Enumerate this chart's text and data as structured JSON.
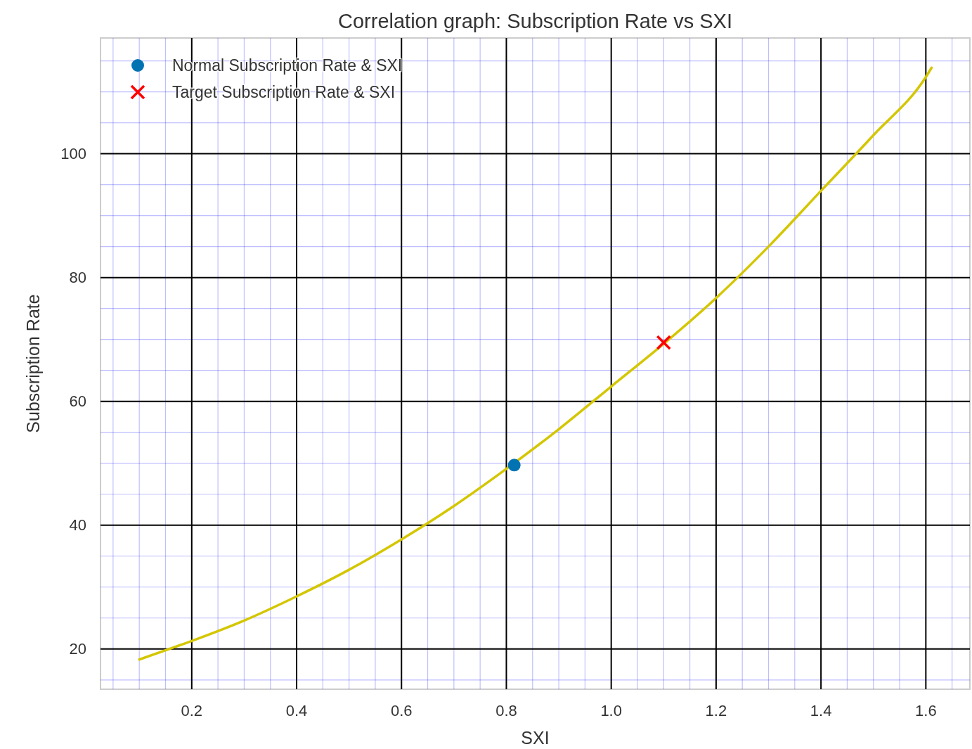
{
  "chart_data": {
    "type": "scatter",
    "title": "Correlation graph: Subscription Rate vs SXI",
    "xlabel": "SXI",
    "ylabel": "Subscription Rate",
    "xlim": [
      0.026,
      1.684
    ],
    "ylim": [
      13.5,
      118.7
    ],
    "xticks": [
      {
        "value": 0.05,
        "label": null
      },
      {
        "value": 0.1,
        "label": null
      },
      {
        "value": 0.15,
        "label": null
      },
      0.2,
      {
        "value": 0.25,
        "label": null
      },
      {
        "value": 0.3,
        "label": null
      },
      {
        "value": 0.35,
        "label": null
      },
      0.4,
      {
        "value": 0.45,
        "label": null
      },
      {
        "value": 0.5,
        "label": null
      },
      {
        "value": 0.55,
        "label": null
      },
      0.6,
      {
        "value": 0.65,
        "label": null
      },
      {
        "value": 0.7,
        "label": null
      },
      {
        "value": 0.75,
        "label": null
      },
      0.8,
      {
        "value": 0.85,
        "label": null
      },
      {
        "value": 0.9,
        "label": null
      },
      {
        "value": 0.95,
        "label": null
      },
      {
        "value": 1.0,
        "label": "1.0"
      },
      {
        "value": 1.05,
        "label": null
      },
      {
        "value": 1.1,
        "label": null
      },
      {
        "value": 1.15,
        "label": null
      },
      1.2,
      {
        "value": 1.25,
        "label": null
      },
      {
        "value": 1.3,
        "label": null
      },
      {
        "value": 1.35,
        "label": null
      },
      1.4,
      {
        "value": 1.45,
        "label": null
      },
      {
        "value": 1.5,
        "label": null
      },
      {
        "value": 1.55,
        "label": null
      },
      1.6,
      {
        "value": 1.65,
        "label": null
      }
    ],
    "yticks": [
      {
        "value": 15,
        "label": null
      },
      20,
      {
        "value": 25,
        "label": null
      },
      {
        "value": 30,
        "label": null
      },
      {
        "value": 35,
        "label": null
      },
      40,
      {
        "value": 45,
        "label": null
      },
      {
        "value": 50,
        "label": null
      },
      {
        "value": 55,
        "label": null
      },
      60,
      {
        "value": 65,
        "label": null
      },
      {
        "value": 70,
        "label": null
      },
      {
        "value": 75,
        "label": null
      },
      80,
      {
        "value": 85,
        "label": null
      },
      {
        "value": 90,
        "label": null
      },
      {
        "value": 95,
        "label": null
      },
      100,
      {
        "value": 105,
        "label": null
      },
      {
        "value": 110,
        "label": null
      },
      {
        "value": 115,
        "label": null
      }
    ],
    "grid": true,
    "legend": "top left",
    "series": [
      {
        "type": "line",
        "color": "#d4c600",
        "line_style": "solid",
        "marker": "none",
        "x": [
          0.1,
          0.2,
          0.3,
          0.4,
          0.5,
          0.6,
          0.7,
          0.8,
          0.9,
          1.0,
          1.1,
          1.2,
          1.3,
          1.4,
          1.5,
          1.6,
          1.611
        ],
        "values": [
          18.3,
          21.3,
          24.6,
          28.5,
          32.8,
          37.7,
          43.1,
          49.1,
          55.5,
          62.4,
          69.3,
          76.7,
          85.0,
          94.0,
          103.0,
          112.4,
          113.9
        ]
      },
      {
        "name": "Normal Subscription Rate & SXI",
        "type": "scatter",
        "marker": "circle",
        "color": "#0173b2",
        "x": [
          0.815
        ],
        "values": [
          49.7
        ]
      },
      {
        "name": "Target Subscription Rate & SXI",
        "type": "scatter",
        "marker": "cross",
        "color": "#ff0000",
        "x": [
          1.1
        ],
        "values": [
          69.5
        ]
      }
    ]
  }
}
